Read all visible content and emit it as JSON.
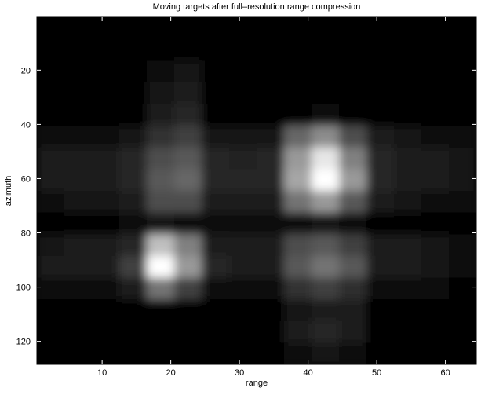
{
  "chart_data": {
    "type": "heatmap",
    "title": "Moving targets after full–resolution range compression",
    "x_label": "range",
    "y_label": "azimuth",
    "x": [
      2.5,
      6.5,
      10.5,
      14.5,
      18.5,
      22.5,
      26.5,
      30.5,
      34.5,
      38.5,
      42.5,
      46.5,
      50.5,
      54.5,
      58.5,
      62.5
    ],
    "y": [
      4.5,
      12.5,
      20.5,
      28.5,
      36.5,
      44.5,
      52.5,
      60.5,
      68.5,
      76.5,
      84.5,
      92.5,
      100.5,
      108.5,
      116.5,
      124.5
    ],
    "z": [
      [
        0,
        0,
        0,
        0,
        0,
        0,
        0,
        0,
        0,
        0,
        0,
        0,
        0,
        0,
        0,
        0
      ],
      [
        0,
        0,
        0,
        0,
        0,
        0,
        0,
        0,
        0,
        0,
        0,
        0,
        0,
        0,
        0,
        0
      ],
      [
        0,
        0,
        0,
        0,
        0.05,
        0.08,
        0,
        0,
        0,
        0,
        0,
        0,
        0,
        0,
        0,
        0
      ],
      [
        0,
        0,
        0,
        0,
        0.08,
        0.12,
        0,
        0,
        0,
        0,
        0,
        0,
        0,
        0,
        0,
        0
      ],
      [
        0,
        0,
        0,
        0,
        0.1,
        0.15,
        0,
        0,
        0,
        0,
        0.05,
        0,
        0,
        0,
        0,
        0
      ],
      [
        0.05,
        0.06,
        0.06,
        0.08,
        0.2,
        0.25,
        0.08,
        0.08,
        0.08,
        0.4,
        0.55,
        0.3,
        0.1,
        0.08,
        0.06,
        0.05
      ],
      [
        0.1,
        0.1,
        0.12,
        0.15,
        0.3,
        0.35,
        0.15,
        0.14,
        0.15,
        0.6,
        0.9,
        0.5,
        0.15,
        0.12,
        0.1,
        0.08
      ],
      [
        0.1,
        0.12,
        0.12,
        0.15,
        0.35,
        0.4,
        0.15,
        0.15,
        0.15,
        0.65,
        1.0,
        0.6,
        0.15,
        0.12,
        0.1,
        0.08
      ],
      [
        0.06,
        0.08,
        0.08,
        0.1,
        0.3,
        0.3,
        0.1,
        0.1,
        0.1,
        0.45,
        0.6,
        0.35,
        0.1,
        0.08,
        0.06,
        0.05
      ],
      [
        0,
        0.02,
        0.02,
        0.03,
        0.08,
        0.05,
        0.03,
        0.03,
        0.03,
        0.06,
        0.08,
        0.05,
        0.02,
        0.02,
        0.02,
        0
      ],
      [
        0.08,
        0.1,
        0.1,
        0.15,
        0.75,
        0.5,
        0.12,
        0.1,
        0.1,
        0.3,
        0.35,
        0.25,
        0.1,
        0.1,
        0.08,
        0.05
      ],
      [
        0.1,
        0.1,
        0.12,
        0.25,
        1.0,
        0.6,
        0.15,
        0.12,
        0.12,
        0.35,
        0.45,
        0.35,
        0.12,
        0.1,
        0.08,
        0.06
      ],
      [
        0.04,
        0.05,
        0.05,
        0.1,
        0.45,
        0.25,
        0.06,
        0.05,
        0.05,
        0.2,
        0.25,
        0.18,
        0.05,
        0.04,
        0.03,
        0.02
      ],
      [
        0,
        0,
        0,
        0,
        0,
        0,
        0,
        0,
        0,
        0.08,
        0.12,
        0.1,
        0,
        0,
        0,
        0
      ],
      [
        0,
        0,
        0,
        0,
        0,
        0,
        0,
        0,
        0,
        0.1,
        0.15,
        0.12,
        0,
        0,
        0,
        0
      ],
      [
        0,
        0,
        0,
        0,
        0,
        0,
        0,
        0,
        0,
        0.05,
        0.08,
        0.05,
        0,
        0,
        0,
        0
      ]
    ],
    "colormap": "gray",
    "clim": [
      0,
      1
    ],
    "xlim": [
      0.5,
      64.5
    ],
    "xticks": [
      10,
      20,
      30,
      40,
      50,
      60
    ],
    "ylim": [
      0.5,
      128.5
    ],
    "yticks": [
      20,
      40,
      60,
      80,
      100,
      120
    ],
    "y_reversed": true
  }
}
